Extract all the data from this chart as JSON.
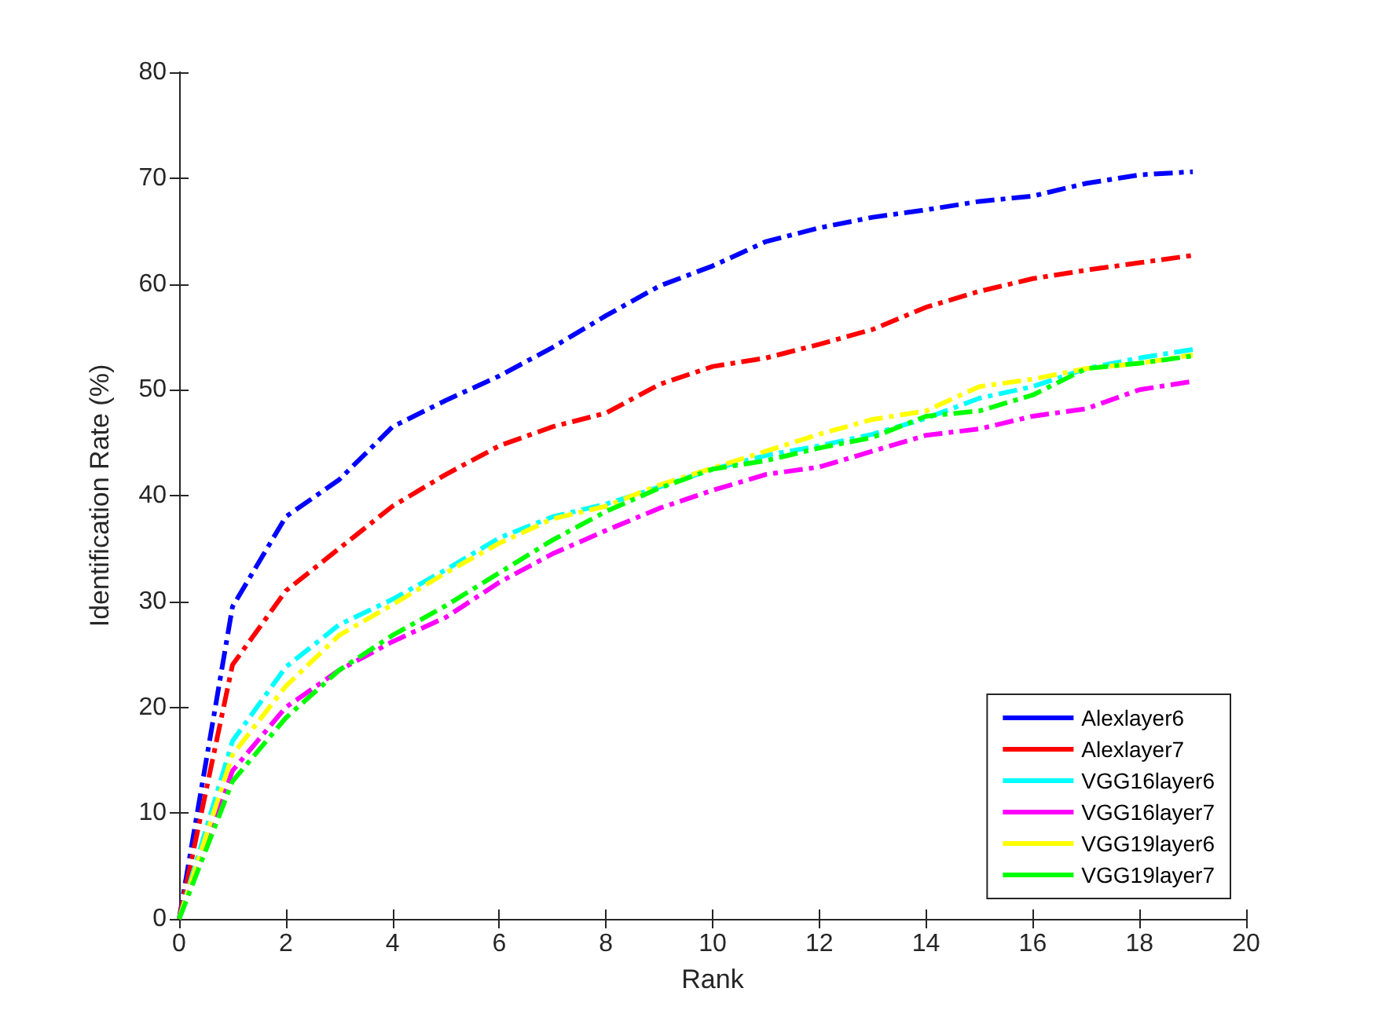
{
  "chart_data": {
    "type": "line",
    "xlabel": "Rank",
    "ylabel": "Identification Rate (%)",
    "x": [
      0,
      1,
      2,
      3,
      4,
      5,
      6,
      7,
      8,
      9,
      10,
      11,
      12,
      13,
      14,
      15,
      16,
      17,
      18,
      19
    ],
    "xlim": [
      0,
      20
    ],
    "xticks": [
      0,
      2,
      4,
      6,
      8,
      10,
      12,
      14,
      16,
      18,
      20
    ],
    "ylim": [
      0,
      80
    ],
    "yticks": [
      0,
      10,
      20,
      30,
      40,
      50,
      60,
      70,
      80
    ],
    "grid": false,
    "legend": "bottom right",
    "marker": "none",
    "line_style": "dashed",
    "series": [
      {
        "name": "Alexlayer6",
        "color": "#0000ff",
        "values": [
          0,
          29.5,
          38,
          41.5,
          46.5,
          49,
          51.3,
          54,
          57,
          59.8,
          61.7,
          64,
          65.3,
          66.3,
          67,
          67.8,
          68.3,
          69.5,
          70.3,
          70.6
        ]
      },
      {
        "name": "Alexlayer7",
        "color": "#ff0000",
        "values": [
          0,
          24,
          31,
          35,
          39,
          42,
          44.7,
          46.5,
          47.8,
          50.5,
          52.2,
          53,
          54.3,
          55.7,
          57.8,
          59.3,
          60.5,
          61.3,
          62,
          62.7
        ]
      },
      {
        "name": "VGG16layer6",
        "color": "#00ffff",
        "values": [
          0,
          16.8,
          23.8,
          27.8,
          30.2,
          33,
          36,
          38,
          39.2,
          40.8,
          42.5,
          43.8,
          44.7,
          45.8,
          47.3,
          49.2,
          50.3,
          52,
          53,
          53.8
        ]
      },
      {
        "name": "VGG16layer7",
        "color": "#ff00ff",
        "values": [
          0,
          14,
          20,
          23.5,
          26.2,
          28.5,
          31.8,
          34.5,
          36.7,
          38.8,
          40.5,
          42,
          42.7,
          44.2,
          45.7,
          46.3,
          47.5,
          48.2,
          50,
          50.8
        ]
      },
      {
        "name": "VGG19layer6",
        "color": "#ffff00",
        "values": [
          0,
          15.5,
          22,
          26.8,
          29.7,
          32.7,
          35.5,
          37.8,
          39,
          41,
          42.6,
          44.2,
          45.8,
          47.2,
          48,
          50.3,
          51,
          52,
          52.5,
          53.3
        ]
      },
      {
        "name": "VGG19layer7",
        "color": "#00ff00",
        "values": [
          0,
          13,
          19,
          23.5,
          26.8,
          29.6,
          32.7,
          35.8,
          38.5,
          40.7,
          42.5,
          43.3,
          44.5,
          45.5,
          47.5,
          48,
          49.5,
          52,
          52.5,
          53.2
        ]
      }
    ]
  }
}
